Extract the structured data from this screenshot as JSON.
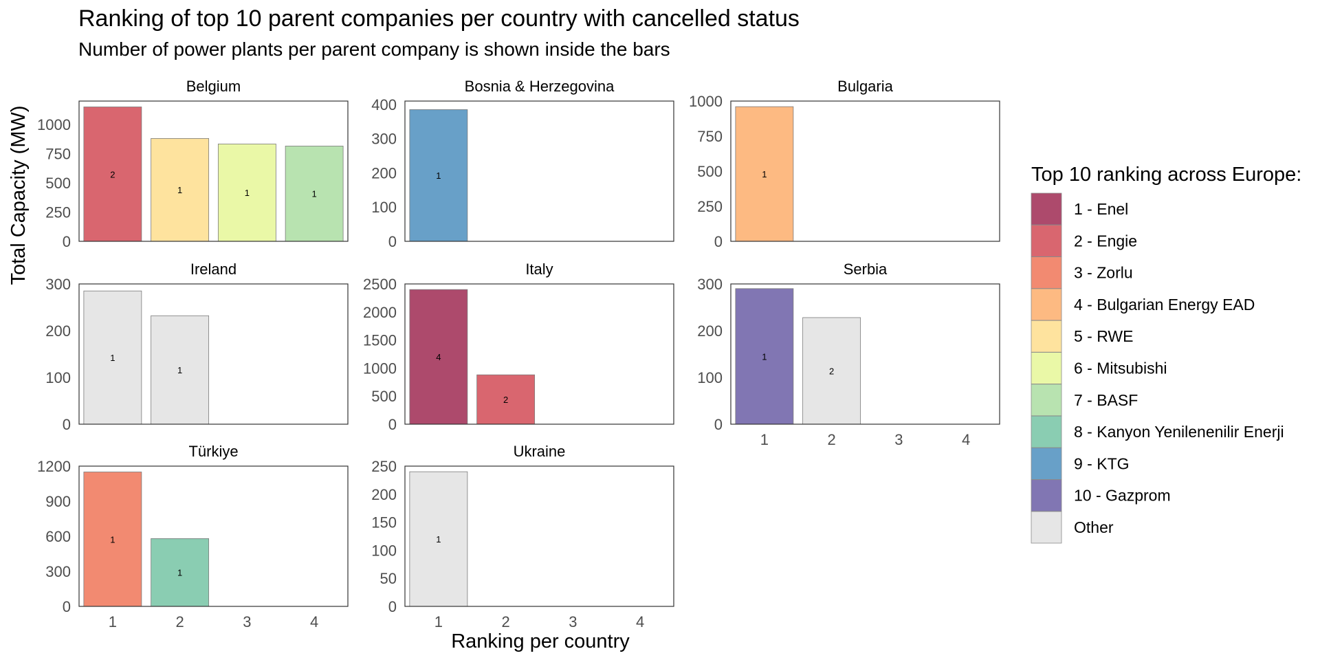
{
  "title": "Ranking of top 10 parent companies per country with cancelled status",
  "subtitle": "Number of power plants per parent company is shown inside the bars",
  "xlabel": "Ranking per country",
  "ylabel": "Total Capacity (MW)",
  "legend": {
    "title": "Top 10 ranking across Europe:",
    "items": [
      {
        "label": "1 - Enel",
        "color": "#AD4A6C"
      },
      {
        "label": "2 - Engie",
        "color": "#D9666F"
      },
      {
        "label": "3 - Zorlu",
        "color": "#F28A71"
      },
      {
        "label": "4 - Bulgarian Energy EAD",
        "color": "#FDBA82"
      },
      {
        "label": "5 - RWE",
        "color": "#FEE39E"
      },
      {
        "label": "6 - Mitsubishi",
        "color": "#EAF8A7"
      },
      {
        "label": "7 - BASF",
        "color": "#B8E3B0"
      },
      {
        "label": "8 - Kanyon Yenilenenilir Enerji",
        "color": "#8ACDB2"
      },
      {
        "label": "9 - KTG",
        "color": "#68A0C8"
      },
      {
        "label": "10 - Gazprom",
        "color": "#8176B3"
      },
      {
        "label": "Other",
        "color": "#E6E6E6"
      }
    ]
  },
  "chart_data": {
    "type": "bar",
    "x_categories": [
      "1",
      "2",
      "3",
      "4"
    ],
    "panels": [
      {
        "country": "Belgium",
        "y_ticks": [
          0,
          250,
          500,
          750,
          1000
        ],
        "y_max": 1200,
        "bars": [
          {
            "rank": 1,
            "value": 1150,
            "plants": "2",
            "company": "2 - Engie"
          },
          {
            "rank": 2,
            "value": 880,
            "plants": "1",
            "company": "5 - RWE"
          },
          {
            "rank": 3,
            "value": 833,
            "plants": "1",
            "company": "6 - Mitsubishi"
          },
          {
            "rank": 4,
            "value": 815,
            "plants": "1",
            "company": "7 - BASF"
          }
        ]
      },
      {
        "country": "Bosnia & Herzegovina",
        "y_ticks": [
          0,
          100,
          200,
          300,
          400
        ],
        "y_max": 410,
        "bars": [
          {
            "rank": 1,
            "value": 385,
            "plants": "1",
            "company": "9 - KTG"
          }
        ]
      },
      {
        "country": "Bulgaria",
        "y_ticks": [
          0,
          250,
          500,
          750,
          1000
        ],
        "y_max": 1000,
        "bars": [
          {
            "rank": 1,
            "value": 960,
            "plants": "1",
            "company": "4 - Bulgarian Energy EAD"
          }
        ]
      },
      {
        "country": "Ireland",
        "y_ticks": [
          0,
          100,
          200,
          300
        ],
        "y_max": 300,
        "bars": [
          {
            "rank": 1,
            "value": 285,
            "plants": "1",
            "company": "Other"
          },
          {
            "rank": 2,
            "value": 232,
            "plants": "1",
            "company": "Other"
          }
        ]
      },
      {
        "country": "Italy",
        "y_ticks": [
          0,
          500,
          1000,
          1500,
          2000,
          2500
        ],
        "y_max": 2500,
        "bars": [
          {
            "rank": 1,
            "value": 2400,
            "plants": "4",
            "company": "1 - Enel"
          },
          {
            "rank": 2,
            "value": 880,
            "plants": "2",
            "company": "2 - Engie"
          }
        ]
      },
      {
        "country": "Serbia",
        "y_ticks": [
          0,
          100,
          200,
          300
        ],
        "y_max": 300,
        "bars": [
          {
            "rank": 1,
            "value": 290,
            "plants": "1",
            "company": "10 - Gazprom"
          },
          {
            "rank": 2,
            "value": 228,
            "plants": "2",
            "company": "Other"
          }
        ]
      },
      {
        "country": "Türkiye",
        "y_ticks": [
          0,
          300,
          600,
          900,
          1200
        ],
        "y_max": 1200,
        "bars": [
          {
            "rank": 1,
            "value": 1150,
            "plants": "1",
            "company": "3 - Zorlu"
          },
          {
            "rank": 2,
            "value": 580,
            "plants": "1",
            "company": "8 - Kanyon Yenilenenilir Enerji"
          }
        ]
      },
      {
        "country": "Ukraine",
        "y_ticks": [
          0,
          50,
          100,
          150,
          200,
          250
        ],
        "y_max": 250,
        "bars": [
          {
            "rank": 1,
            "value": 240,
            "plants": "1",
            "company": "Other"
          }
        ]
      }
    ],
    "x_axis_shown_on": [
      "Serbia",
      "Türkiye",
      "Ukraine"
    ]
  }
}
